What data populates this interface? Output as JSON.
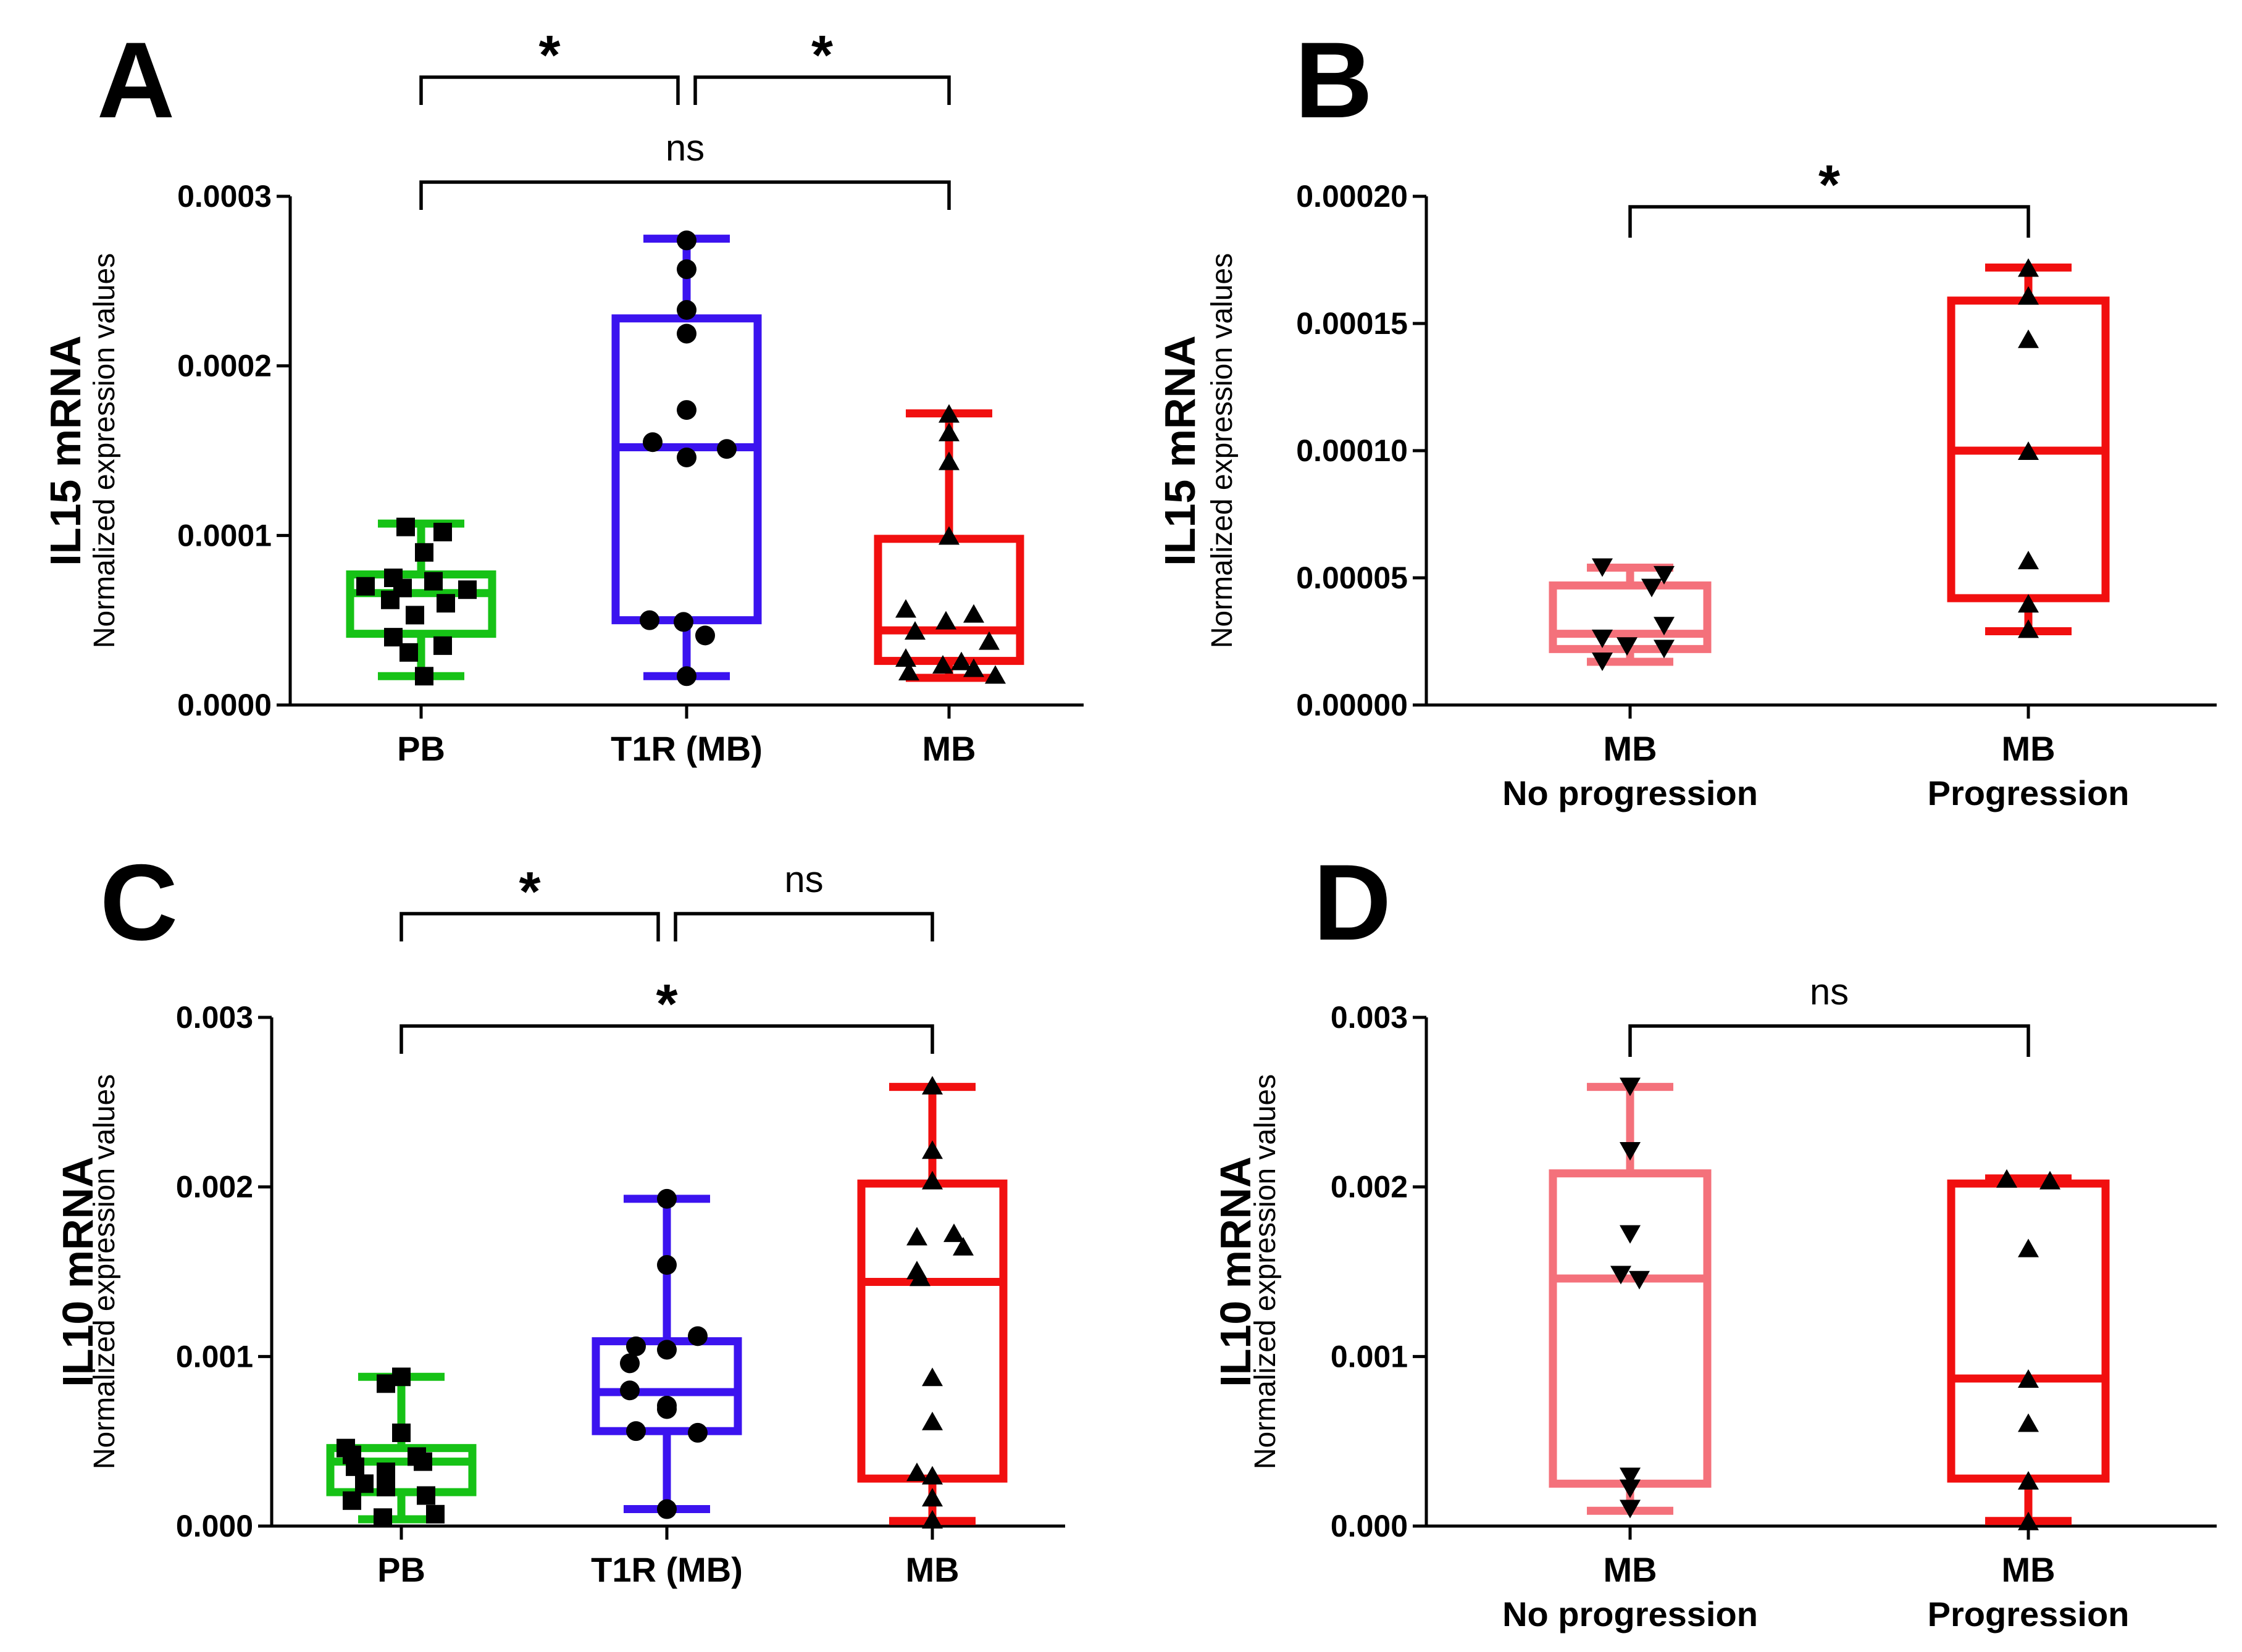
{
  "chart_data": [
    {
      "panel": "A",
      "type": "box",
      "ylabel_main": "IL15 mRNA",
      "ylabel_sub": "Normalized expression values",
      "ylim": [
        0,
        0.0003
      ],
      "yticks": [
        0,
        0.0001,
        0.0002,
        0.0003
      ],
      "ytick_labels": [
        "0.0000",
        "0.0001",
        "0.0002",
        "0.0003"
      ],
      "groups": [
        {
          "label_lines": [
            "PB"
          ],
          "color": "#16c216",
          "marker": "square",
          "whisker_low": 1.7e-05,
          "q1": 4.2e-05,
          "median": 6.6e-05,
          "q3": 7.7e-05,
          "whisker_high": 0.000107,
          "points": [
            0.000105,
            0.000102,
            9e-05,
            7.5e-05,
            7.3e-05,
            7e-05,
            6.9e-05,
            6.8e-05,
            6.2e-05,
            6e-05,
            5.3e-05,
            4e-05,
            3.5e-05,
            3.1e-05,
            1.7e-05
          ]
        },
        {
          "label_lines": [
            "T1R (MB)"
          ],
          "color": "#3b13ef",
          "marker": "circle",
          "whisker_low": 1.7e-05,
          "q1": 5e-05,
          "median": 0.000152,
          "q3": 0.000228,
          "whisker_high": 0.000275,
          "points": [
            0.000274,
            0.000257,
            0.000233,
            0.000219,
            0.000174,
            0.000155,
            0.000151,
            0.000146,
            5e-05,
            4.9e-05,
            4.1e-05,
            1.7e-05
          ]
        },
        {
          "label_lines": [
            "MB"
          ],
          "color": "#f10f0f",
          "marker": "triangle-up",
          "whisker_low": 1.6e-05,
          "q1": 2.6e-05,
          "median": 4.4e-05,
          "q3": 9.8e-05,
          "whisker_high": 0.000172,
          "points": [
            0.000172,
            0.000161,
            0.000144,
            0.0001,
            5.7e-05,
            5.4e-05,
            5e-05,
            4.4e-05,
            3.8e-05,
            2.8e-05,
            2.6e-05,
            2.4e-05,
            2.2e-05,
            2e-05,
            1.8e-05
          ]
        }
      ],
      "comparisons": [
        {
          "from": 0,
          "to": 2,
          "label": "ns",
          "level": 2
        },
        {
          "from": 0,
          "to": 1,
          "label": "*",
          "level": 1
        },
        {
          "from": 1,
          "to": 2,
          "label": "*",
          "level": 1
        }
      ]
    },
    {
      "panel": "B",
      "type": "box",
      "ylabel_main": "IL15 mRNA",
      "ylabel_sub": "Normalized expression values",
      "ylim": [
        0,
        0.0002
      ],
      "yticks": [
        0,
        5e-05,
        0.0001,
        0.00015,
        0.0002
      ],
      "ytick_labels": [
        "0.00000",
        "0.00005",
        "0.00010",
        "0.00015",
        "0.00020"
      ],
      "groups": [
        {
          "label_lines": [
            "MB",
            "No progression"
          ],
          "color": "#f4717b",
          "marker": "triangle-down",
          "whisker_low": 1.7e-05,
          "q1": 2.2e-05,
          "median": 2.8e-05,
          "q3": 4.7e-05,
          "whisker_high": 5.4e-05,
          "points": [
            5.4e-05,
            5.1e-05,
            4.6e-05,
            3.1e-05,
            2.6e-05,
            2.3e-05,
            2.2e-05,
            1.7e-05
          ]
        },
        {
          "label_lines": [
            "MB",
            "Progression"
          ],
          "color": "#f10f0f",
          "marker": "triangle-up",
          "whisker_low": 2.9e-05,
          "q1": 4.2e-05,
          "median": 0.0001,
          "q3": 0.000159,
          "whisker_high": 0.000172,
          "points": [
            0.000172,
            0.000161,
            0.000144,
            0.0001,
            5.7e-05,
            4e-05,
            3e-05
          ]
        }
      ],
      "comparisons": [
        {
          "from": 0,
          "to": 1,
          "label": "*",
          "level": 1
        }
      ]
    },
    {
      "panel": "C",
      "type": "box",
      "ylabel_main": "IL10 mRNA",
      "ylabel_sub": "Normalized expression values",
      "ylim": [
        0,
        0.003
      ],
      "yticks": [
        0,
        0.001,
        0.002,
        0.003
      ],
      "ytick_labels": [
        "0.000",
        "0.001",
        "0.002",
        "0.003"
      ],
      "groups": [
        {
          "label_lines": [
            "PB"
          ],
          "color": "#16c216",
          "marker": "square",
          "whisker_low": 4e-05,
          "q1": 0.0002,
          "median": 0.00038,
          "q3": 0.00046,
          "whisker_high": 0.00088,
          "points": [
            0.00088,
            0.00084,
            0.00055,
            0.00046,
            0.00042,
            0.00041,
            0.00038,
            0.00035,
            0.00032,
            0.00025,
            0.00023,
            0.00018,
            0.00015,
            7e-05,
            5e-05
          ]
        },
        {
          "label_lines": [
            "T1R (MB)"
          ],
          "color": "#3b13ef",
          "marker": "circle",
          "whisker_low": 0.0001,
          "q1": 0.00056,
          "median": 0.00079,
          "q3": 0.00109,
          "whisker_high": 0.00193,
          "points": [
            0.00193,
            0.00154,
            0.00112,
            0.00106,
            0.00104,
            0.00096,
            0.0008,
            0.00071,
            0.00069,
            0.00056,
            0.00055,
            0.0001
          ]
        },
        {
          "label_lines": [
            "MB"
          ],
          "color": "#f10f0f",
          "marker": "triangle-up",
          "whisker_low": 3e-05,
          "q1": 0.00028,
          "median": 0.00144,
          "q3": 0.00202,
          "whisker_high": 0.00259,
          "points": [
            0.0026,
            0.00222,
            0.00204,
            0.00173,
            0.00171,
            0.00165,
            0.00151,
            0.00147,
            0.00088,
            0.00062,
            0.00032,
            0.0003,
            0.00017,
            4e-05
          ]
        }
      ],
      "comparisons": [
        {
          "from": 0,
          "to": 2,
          "label": "*",
          "level": 2
        },
        {
          "from": 0,
          "to": 1,
          "label": "*",
          "level": 1
        },
        {
          "from": 1,
          "to": 2,
          "label": "ns",
          "level": 1
        }
      ]
    },
    {
      "panel": "D",
      "type": "box",
      "ylabel_main": "IL10 mRNA",
      "ylabel_sub": "Normalized expression values",
      "ylim": [
        0,
        0.003
      ],
      "yticks": [
        0,
        0.001,
        0.002,
        0.003
      ],
      "ytick_labels": [
        "0.000",
        "0.001",
        "0.002",
        "0.003"
      ],
      "groups": [
        {
          "label_lines": [
            "MB",
            "No progression"
          ],
          "color": "#f4717b",
          "marker": "triangle-down",
          "whisker_low": 9e-05,
          "q1": 0.00025,
          "median": 0.00146,
          "q3": 0.00208,
          "whisker_high": 0.00259,
          "points": [
            0.00259,
            0.00221,
            0.00172,
            0.00148,
            0.00145,
            0.00029,
            0.00022,
            0.0001
          ]
        },
        {
          "label_lines": [
            "MB",
            "Progression"
          ],
          "color": "#f10f0f",
          "marker": "triangle-up",
          "whisker_low": 3e-05,
          "q1": 0.00028,
          "median": 0.00087,
          "q3": 0.00202,
          "whisker_high": 0.00205,
          "points": [
            0.00205,
            0.00204,
            0.00164,
            0.00087,
            0.00061,
            0.00027,
            3e-05
          ]
        }
      ],
      "comparisons": [
        {
          "from": 0,
          "to": 1,
          "label": "ns",
          "level": 1
        }
      ]
    }
  ]
}
